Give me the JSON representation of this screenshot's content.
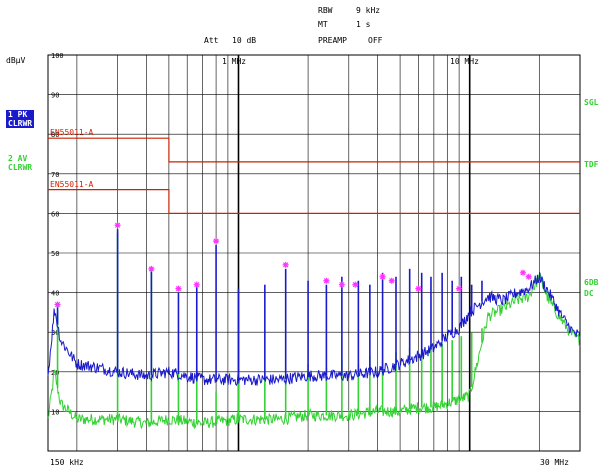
{
  "header": {
    "rbw_label": "RBW",
    "rbw_value": "9 kHz",
    "mt_label": "MT",
    "mt_value": "1 s",
    "preamp_label": "PREAMP",
    "preamp_value": "OFF",
    "att_label": "Att",
    "att_value": "10 dB",
    "marker_1mhz": "1 MHz",
    "marker_10mhz": "10 MHz"
  },
  "y_unit": "dBµV",
  "trace1": {
    "line1": "1 PK",
    "line2": "CLRWR"
  },
  "trace2": {
    "line1": "2 AV",
    "line2": "CLRWR"
  },
  "right_labels": {
    "sgl": "SGL",
    "tdf": "TDF",
    "6db": "6DB",
    "dc": "DC"
  },
  "limit_labels": {
    "upper": "EN55011-A",
    "lower": "EN55011-A"
  },
  "x_labels": {
    "start": "150 kHz",
    "stop": "30 MHz"
  },
  "colors": {
    "pk": "#1a1acc",
    "av": "#33d133",
    "limit": "#cc2200",
    "marker": "#ff33ff",
    "grid": "#000000"
  },
  "chart_data": {
    "type": "line",
    "x_scale": "log",
    "xlim": [
      0.15,
      30
    ],
    "ylim": [
      0,
      100
    ],
    "y_ticks": [
      100,
      90,
      80,
      70,
      60,
      50,
      40,
      30,
      20,
      10
    ],
    "limits": [
      {
        "name": "EN55011-A",
        "x": [
          0.15,
          0.5,
          0.5,
          30
        ],
        "y": [
          79,
          79,
          73,
          73
        ]
      },
      {
        "name": "EN55011-A",
        "x": [
          0.15,
          0.5,
          0.5,
          30
        ],
        "y": [
          66,
          66,
          60,
          60
        ]
      }
    ],
    "series": [
      {
        "name": "1 PK",
        "baseline": [
          [
            0.15,
            19
          ],
          [
            0.16,
            36
          ],
          [
            0.17,
            28
          ],
          [
            0.2,
            22
          ],
          [
            0.25,
            21
          ],
          [
            0.3,
            20
          ],
          [
            0.4,
            19
          ],
          [
            0.5,
            20
          ],
          [
            0.7,
            18
          ],
          [
            1,
            18
          ],
          [
            1.5,
            18
          ],
          [
            2,
            19
          ],
          [
            3,
            19
          ],
          [
            4,
            20
          ],
          [
            5,
            22
          ],
          [
            6,
            24
          ],
          [
            7,
            26
          ],
          [
            8,
            29
          ],
          [
            9,
            31
          ],
          [
            10,
            35
          ],
          [
            12,
            39
          ],
          [
            14,
            38
          ],
          [
            16,
            40
          ],
          [
            18,
            41
          ],
          [
            20,
            44
          ],
          [
            22,
            40
          ],
          [
            25,
            34
          ],
          [
            28,
            30
          ],
          [
            30,
            29
          ]
        ],
        "spikes": [
          [
            0.165,
            37
          ],
          [
            0.3,
            56
          ],
          [
            0.42,
            46
          ],
          [
            0.55,
            40
          ],
          [
            0.66,
            42
          ],
          [
            0.8,
            52
          ],
          [
            1.0,
            41
          ],
          [
            1.3,
            42
          ],
          [
            1.6,
            46
          ],
          [
            2.0,
            43
          ],
          [
            2.4,
            42
          ],
          [
            2.8,
            44
          ],
          [
            3.3,
            43
          ],
          [
            3.7,
            42
          ],
          [
            4.2,
            45
          ],
          [
            4.8,
            44
          ],
          [
            5.5,
            46
          ],
          [
            6.2,
            45
          ],
          [
            6.8,
            44
          ],
          [
            7.6,
            45
          ],
          [
            8.4,
            43
          ],
          [
            9.2,
            44
          ],
          [
            10.2,
            42
          ],
          [
            11.3,
            43
          ]
        ]
      },
      {
        "name": "2 AV",
        "baseline": [
          [
            0.15,
            8
          ],
          [
            0.16,
            20
          ],
          [
            0.17,
            12
          ],
          [
            0.2,
            8
          ],
          [
            0.25,
            8
          ],
          [
            0.3,
            8
          ],
          [
            0.4,
            7
          ],
          [
            0.5,
            8
          ],
          [
            0.7,
            7
          ],
          [
            1,
            8
          ],
          [
            1.5,
            8
          ],
          [
            2,
            9
          ],
          [
            3,
            9
          ],
          [
            4,
            10
          ],
          [
            5,
            10
          ],
          [
            6,
            11
          ],
          [
            7,
            11
          ],
          [
            8,
            12
          ],
          [
            9,
            13
          ],
          [
            10,
            14
          ],
          [
            12,
            34
          ],
          [
            14,
            36
          ],
          [
            16,
            38
          ],
          [
            18,
            39
          ],
          [
            20,
            44
          ],
          [
            22,
            38
          ],
          [
            25,
            33
          ],
          [
            28,
            29
          ],
          [
            30,
            28
          ]
        ],
        "spikes": [
          [
            0.165,
            35
          ],
          [
            0.3,
            55
          ],
          [
            0.42,
            45
          ],
          [
            0.55,
            20
          ],
          [
            0.66,
            21
          ],
          [
            0.8,
            15
          ],
          [
            1.0,
            18
          ],
          [
            1.3,
            20
          ],
          [
            1.6,
            19
          ],
          [
            2.0,
            22
          ],
          [
            2.4,
            21
          ],
          [
            2.8,
            23
          ],
          [
            3.3,
            22
          ],
          [
            3.7,
            24
          ],
          [
            4.2,
            23
          ],
          [
            4.8,
            25
          ],
          [
            5.5,
            26
          ],
          [
            6.2,
            25
          ],
          [
            6.8,
            27
          ],
          [
            7.6,
            27
          ],
          [
            8.4,
            28
          ],
          [
            9.2,
            29
          ],
          [
            10.2,
            30
          ],
          [
            11.3,
            31
          ]
        ]
      }
    ],
    "markers": [
      [
        0.165,
        37
      ],
      [
        0.3,
        57
      ],
      [
        0.42,
        46
      ],
      [
        0.55,
        41
      ],
      [
        0.66,
        42
      ],
      [
        0.8,
        53
      ],
      [
        1.6,
        47
      ],
      [
        2.4,
        43
      ],
      [
        2.8,
        42
      ],
      [
        3.2,
        42
      ],
      [
        4.2,
        44
      ],
      [
        4.6,
        43
      ],
      [
        6.0,
        41
      ],
      [
        9.0,
        41
      ],
      [
        17.0,
        45
      ],
      [
        18.0,
        44
      ]
    ]
  }
}
